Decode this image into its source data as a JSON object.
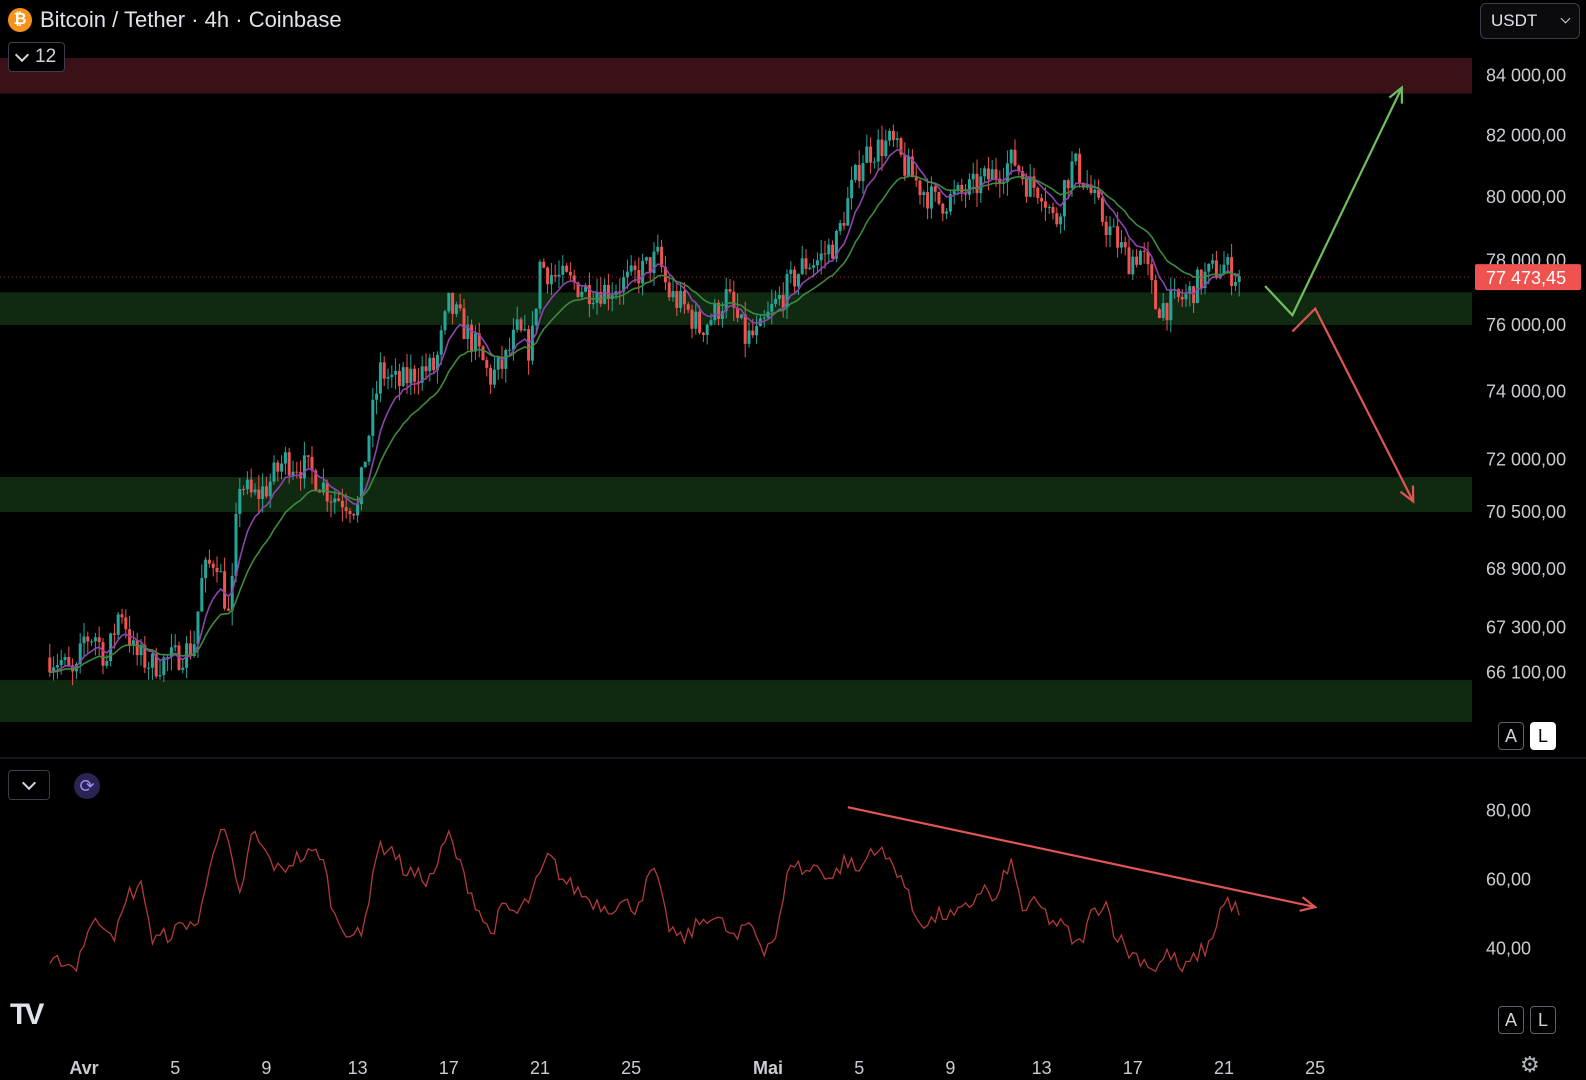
{
  "header": {
    "coin_icon": "bitcoin-icon",
    "coin_symbol": "₿",
    "title": "Bitcoin / Tether · 4h · Coinbase",
    "collapsed_count": "12"
  },
  "currency_select": {
    "value": "USDT"
  },
  "scale_toggles": {
    "auto": "A",
    "log": "L"
  },
  "logo_icon": "tradingview-logo",
  "logo_text": "TV",
  "settings_icon": "gear-icon",
  "settings_glyph": "⚙",
  "colors": {
    "up": "#26a69a",
    "down": "#ef5350",
    "zone": "#0f2a10",
    "resistance": "#3a1116",
    "ema_fast": "#8e44ad",
    "ema_slow": "#3f8a3f",
    "rsi": "#b23a3a",
    "arrow_up": "#6fbf5f",
    "arrow_down": "#e05555"
  },
  "chart_data": [
    {
      "type": "candlestick",
      "title": "Bitcoin / Tether · 4h · Coinbase",
      "ylim": [
        64800,
        84600
      ],
      "y_scale": "log",
      "y_ticks": [
        {
          "value": 84000,
          "label": "84 000,00"
        },
        {
          "value": 82000,
          "label": "82 000,00"
        },
        {
          "value": 80000,
          "label": "80 000,00"
        },
        {
          "value": 78000,
          "label": "78 000,00"
        },
        {
          "value": 76000,
          "label": "76 000,00"
        },
        {
          "value": 74000,
          "label": "74 000,00"
        },
        {
          "value": 72000,
          "label": "72 000,00"
        },
        {
          "value": 70500,
          "label": "70 500,00"
        },
        {
          "value": 68900,
          "label": "68 900,00"
        },
        {
          "value": 67300,
          "label": "67 300,00"
        },
        {
          "value": 66100,
          "label": "66 100,00"
        }
      ],
      "x_ticks": [
        {
          "day": 1,
          "label": "Avr"
        },
        {
          "day": 5,
          "label": "5"
        },
        {
          "day": 9,
          "label": "9"
        },
        {
          "day": 13,
          "label": "13"
        },
        {
          "day": 17,
          "label": "17"
        },
        {
          "day": 21,
          "label": "21"
        },
        {
          "day": 25,
          "label": "25"
        },
        {
          "day": 31,
          "label": "Mai"
        },
        {
          "day": 35,
          "label": "5"
        },
        {
          "day": 39,
          "label": "9"
        },
        {
          "day": 43,
          "label": "13"
        },
        {
          "day": 47,
          "label": "17"
        },
        {
          "day": 51,
          "label": "21"
        },
        {
          "day": 55,
          "label": "25"
        }
      ],
      "last_price": {
        "value": 77473.45,
        "label": "77 473,45"
      },
      "price_path": [
        [
          -0.5,
          66500
        ],
        [
          0,
          66400
        ],
        [
          0.6,
          65900
        ],
        [
          1,
          67000
        ],
        [
          1.5,
          67100
        ],
        [
          2,
          66400
        ],
        [
          2.6,
          67900
        ],
        [
          3.2,
          66600
        ],
        [
          4,
          66300
        ],
        [
          5,
          66500
        ],
        [
          5.8,
          66800
        ],
        [
          6.2,
          68700
        ],
        [
          6.8,
          69300
        ],
        [
          7.4,
          67400
        ],
        [
          7.8,
          71400
        ],
        [
          8.4,
          70900
        ],
        [
          9,
          71200
        ],
        [
          9.8,
          72000
        ],
        [
          10.6,
          71800
        ],
        [
          11.2,
          71500
        ],
        [
          11.8,
          71000
        ],
        [
          12.6,
          70800
        ],
        [
          13,
          70600
        ],
        [
          13.4,
          72400
        ],
        [
          14,
          74600
        ],
        [
          14.8,
          74200
        ],
        [
          15.6,
          74600
        ],
        [
          16.4,
          74700
        ],
        [
          17,
          76600
        ],
        [
          17.6,
          76000
        ],
        [
          18.2,
          75300
        ],
        [
          18.8,
          74400
        ],
        [
          19.4,
          74800
        ],
        [
          20,
          75800
        ],
        [
          20.6,
          75200
        ],
        [
          21,
          77900
        ],
        [
          21.6,
          77500
        ],
        [
          22.4,
          77300
        ],
        [
          23,
          77100
        ],
        [
          24,
          77100
        ],
        [
          25,
          77400
        ],
        [
          26.2,
          78100
        ],
        [
          26.6,
          77000
        ],
        [
          27.4,
          76500
        ],
        [
          28,
          75900
        ],
        [
          28.6,
          76300
        ],
        [
          29.2,
          76900
        ],
        [
          30,
          75600
        ],
        [
          30.6,
          75700
        ],
        [
          31.2,
          76500
        ],
        [
          32,
          77300
        ],
        [
          32.6,
          77900
        ],
        [
          33.2,
          78000
        ],
        [
          34,
          78600
        ],
        [
          34.6,
          80100
        ],
        [
          35.2,
          81400
        ],
        [
          35.8,
          81600
        ],
        [
          36.4,
          81800
        ],
        [
          37,
          81000
        ],
        [
          37.6,
          80400
        ],
        [
          38.4,
          79800
        ],
        [
          39.2,
          80000
        ],
        [
          40,
          80300
        ],
        [
          40.6,
          80600
        ],
        [
          41.2,
          80900
        ],
        [
          41.8,
          81200
        ],
        [
          42.4,
          80400
        ],
        [
          43,
          80300
        ],
        [
          43.6,
          79100
        ],
        [
          44,
          80400
        ],
        [
          44.4,
          81100
        ],
        [
          45,
          80400
        ],
        [
          45.6,
          79400
        ],
        [
          46.2,
          78700
        ],
        [
          46.8,
          78000
        ],
        [
          47.4,
          78300
        ],
        [
          48,
          76600
        ],
        [
          48.6,
          76600
        ],
        [
          49.4,
          76900
        ],
        [
          50,
          77400
        ],
        [
          50.6,
          77700
        ],
        [
          51,
          77800
        ],
        [
          51.6,
          77500
        ],
        [
          51.8,
          77470
        ]
      ],
      "zones": [
        {
          "name": "resistance-zone",
          "from": 83400,
          "to": 84600,
          "color": "#3a1116"
        },
        {
          "name": "support-zone-76k",
          "from": 76000,
          "to": 77000,
          "color": "#0f2a10"
        },
        {
          "name": "support-zone-70-5k",
          "from": 70500,
          "to": 71500,
          "color": "#0f2a10"
        },
        {
          "name": "support-zone-64-8k",
          "from": 64800,
          "to": 65900,
          "color": "#0f2a10"
        }
      ],
      "moving_averages": [
        {
          "period": 9,
          "color": "#8e44ad"
        },
        {
          "period": 21,
          "color": "#3f8a3f"
        }
      ],
      "scenario_up": [
        [
          52.8,
          77200
        ],
        [
          54,
          76300
        ],
        [
          58.8,
          83600
        ]
      ],
      "scenario_down": [
        [
          54,
          75800
        ],
        [
          55,
          76500
        ],
        [
          59.3,
          70800
        ]
      ]
    },
    {
      "type": "line",
      "name": "rsi-panel",
      "ylim": [
        25,
        86
      ],
      "y_ticks": [
        {
          "value": 80,
          "label": "80,00"
        },
        {
          "value": 60,
          "label": "60,00"
        },
        {
          "value": 40,
          "label": "40,00"
        }
      ],
      "path": [
        [
          -0.5,
          34
        ],
        [
          0,
          37
        ],
        [
          0.6,
          34
        ],
        [
          1.2,
          46
        ],
        [
          1.8,
          48
        ],
        [
          2.4,
          44
        ],
        [
          3,
          56
        ],
        [
          3.6,
          58
        ],
        [
          4,
          42
        ],
        [
          5,
          45
        ],
        [
          5.6,
          48
        ],
        [
          6,
          46
        ],
        [
          6.6,
          69
        ],
        [
          7.2,
          74
        ],
        [
          7.8,
          54
        ],
        [
          8.4,
          74
        ],
        [
          9,
          67
        ],
        [
          9.6,
          62
        ],
        [
          10.2,
          66
        ],
        [
          10.8,
          67
        ],
        [
          11.4,
          68
        ],
        [
          12,
          49
        ],
        [
          12.6,
          45
        ],
        [
          13.2,
          43
        ],
        [
          13.8,
          68
        ],
        [
          14.4,
          70
        ],
        [
          15,
          63
        ],
        [
          15.6,
          61
        ],
        [
          16.2,
          60
        ],
        [
          17,
          73
        ],
        [
          17.6,
          62
        ],
        [
          18.2,
          53
        ],
        [
          18.8,
          44
        ],
        [
          19.4,
          52
        ],
        [
          20,
          50
        ],
        [
          20.6,
          55
        ],
        [
          21.4,
          67
        ],
        [
          22,
          60
        ],
        [
          22.6,
          57
        ],
        [
          23.2,
          54
        ],
        [
          24,
          52
        ],
        [
          24.6,
          53
        ],
        [
          25.2,
          52
        ],
        [
          26,
          63
        ],
        [
          26.6,
          47
        ],
        [
          27.2,
          42
        ],
        [
          27.8,
          46
        ],
        [
          28.4,
          50
        ],
        [
          29,
          47
        ],
        [
          29.6,
          42
        ],
        [
          30.2,
          48
        ],
        [
          30.8,
          40
        ],
        [
          31.4,
          44
        ],
        [
          32,
          66
        ],
        [
          32.6,
          62
        ],
        [
          33.2,
          64
        ],
        [
          33.8,
          60
        ],
        [
          34.4,
          66
        ],
        [
          35,
          62
        ],
        [
          35.6,
          70
        ],
        [
          36.2,
          66
        ],
        [
          36.8,
          62
        ],
        [
          37.4,
          50
        ],
        [
          38,
          47
        ],
        [
          38.6,
          50
        ],
        [
          39.2,
          49
        ],
        [
          39.8,
          52
        ],
        [
          40.4,
          58
        ],
        [
          41,
          53
        ],
        [
          41.6,
          66
        ],
        [
          42.2,
          51
        ],
        [
          42.8,
          53
        ],
        [
          43.4,
          48
        ],
        [
          44,
          46
        ],
        [
          44.6,
          40
        ],
        [
          45.2,
          50
        ],
        [
          45.8,
          54
        ],
        [
          46.2,
          45
        ],
        [
          46.8,
          39
        ],
        [
          47.4,
          37
        ],
        [
          48,
          34
        ],
        [
          48.6,
          39
        ],
        [
          49.2,
          33
        ],
        [
          49.8,
          38
        ],
        [
          50.4,
          41
        ],
        [
          50.8,
          51
        ],
        [
          51.2,
          54
        ],
        [
          51.8,
          49
        ]
      ],
      "trend_arrow": [
        [
          34.5,
          81
        ],
        [
          55,
          52
        ]
      ]
    }
  ]
}
